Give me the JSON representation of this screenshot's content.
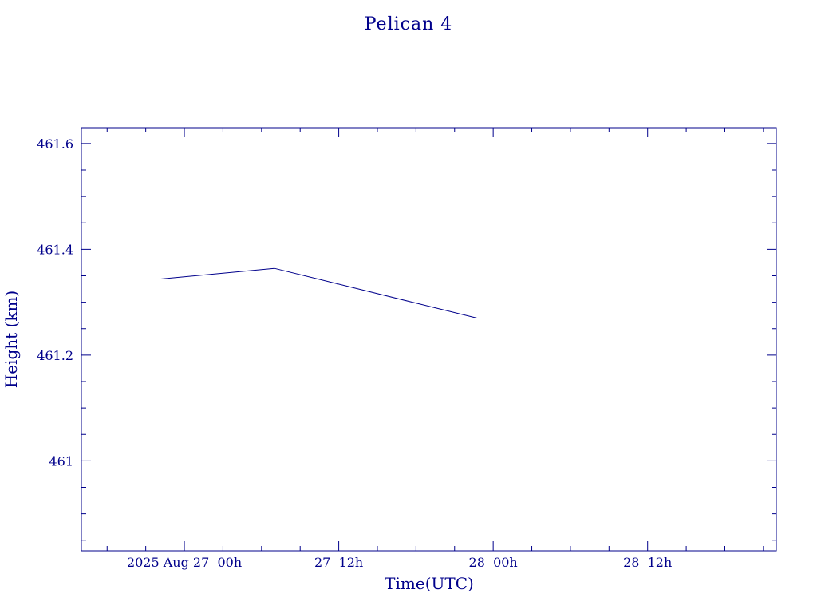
{
  "chart_data": {
    "type": "line",
    "title": "Pelican 4",
    "xlabel": "Time(UTC)",
    "ylabel": "Height (km)",
    "xlim": [
      "2025-08-26T16:00",
      "2025-08-28T22:00"
    ],
    "ylim": [
      460.83,
      461.63
    ],
    "x_ticks": [
      {
        "value": "2025-08-27T00:00",
        "label": "2025 Aug 27  00h"
      },
      {
        "value": "2025-08-27T12:00",
        "label": "27  12h"
      },
      {
        "value": "2025-08-28T00:00",
        "label": "28  00h"
      },
      {
        "value": "2025-08-28T12:00",
        "label": "28  12h"
      }
    ],
    "x_minor_step_hours": 3,
    "y_ticks": [
      {
        "value": 461.0,
        "label": "461"
      },
      {
        "value": 461.2,
        "label": "461.2"
      },
      {
        "value": 461.4,
        "label": "461.4"
      },
      {
        "value": 461.6,
        "label": "461.6"
      }
    ],
    "y_minor_step": 0.05,
    "grid": false,
    "series": [
      {
        "color": "#00008b",
        "points": [
          {
            "x": "2025-08-26T22:10",
            "y": 461.344
          },
          {
            "x": "2025-08-27T07:00",
            "y": 461.364
          },
          {
            "x": "2025-08-27T22:45",
            "y": 461.27
          }
        ]
      }
    ]
  }
}
